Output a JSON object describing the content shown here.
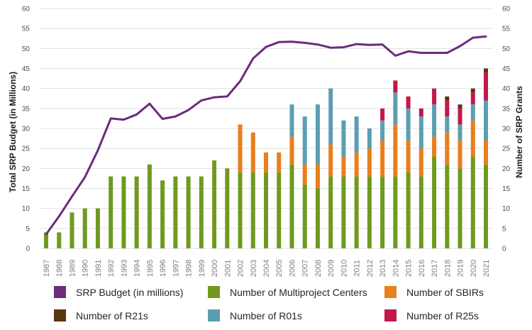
{
  "colors": {
    "budget": "#6b2c7d",
    "centers": "#6f9a1f",
    "sbir": "#e87f1c",
    "r21": "#5a3410",
    "r01": "#5b9eb2",
    "r25": "#c2184a",
    "grid": "#e0e0e0"
  },
  "chart_data": {
    "type": "bar",
    "stacked": true,
    "left_axis_title": "Total SRP Budget (in Millions)",
    "right_axis_title": "Number of SRP Grants",
    "ylim": [
      0,
      60
    ],
    "y_ticks": [
      "0",
      "5",
      "10",
      "15",
      "20",
      "25",
      "30",
      "35",
      "40",
      "45",
      "50",
      "55",
      "60"
    ],
    "categories": [
      "1987",
      "1988",
      "1989",
      "1990",
      "1991",
      "1992",
      "1993",
      "1994",
      "1995",
      "1996",
      "1997",
      "1998",
      "1999",
      "2000",
      "2001",
      "2002",
      "2003",
      "2004",
      "2005",
      "2006",
      "2007",
      "2008",
      "2009",
      "2010",
      "2011",
      "2012",
      "2013",
      "2014",
      "2015",
      "2016",
      "2017",
      "2018",
      "2019",
      "2020",
      "2021"
    ],
    "bar_series": [
      {
        "key": "centers",
        "name": "Number of Multiproject Centers",
        "values": [
          4,
          4,
          9,
          10,
          10,
          18,
          18,
          18,
          21,
          17,
          18,
          18,
          18,
          22,
          20,
          19,
          19,
          19,
          19,
          21,
          16,
          15,
          18,
          18,
          18,
          18,
          18,
          18,
          19,
          18,
          23,
          21,
          20,
          23,
          21
        ]
      },
      {
        "key": "sbir",
        "name": "Number of SBIRs",
        "values": [
          0,
          0,
          0,
          0,
          0,
          0,
          0,
          0,
          0,
          0,
          0,
          0,
          0,
          0,
          0,
          12,
          10,
          5,
          5,
          7,
          5,
          6,
          8,
          5,
          6,
          7,
          9,
          13,
          8,
          7,
          5,
          8,
          7,
          9,
          6
        ]
      },
      {
        "key": "r01",
        "name": "Number of R01s",
        "values": [
          0,
          0,
          0,
          0,
          0,
          0,
          0,
          0,
          0,
          0,
          0,
          0,
          0,
          0,
          0,
          0,
          0,
          0,
          0,
          8,
          12,
          15,
          14,
          9,
          9,
          5,
          5,
          8,
          8,
          8,
          8,
          4,
          4,
          4,
          10
        ]
      },
      {
        "key": "r25",
        "name": "Number of R25s",
        "values": [
          0,
          0,
          0,
          0,
          0,
          0,
          0,
          0,
          0,
          0,
          0,
          0,
          0,
          0,
          0,
          0,
          0,
          0,
          0,
          0,
          0,
          0,
          0,
          0,
          0,
          0,
          3,
          3,
          3,
          2,
          4,
          4,
          4,
          3,
          7
        ]
      },
      {
        "key": "r21",
        "name": "Number of R21s",
        "values": [
          0,
          0,
          0,
          0,
          0,
          0,
          0,
          0,
          0,
          0,
          0,
          0,
          0,
          0,
          0,
          0,
          0,
          0,
          0,
          0,
          0,
          0,
          0,
          0,
          0,
          0,
          0,
          0,
          0,
          0,
          0,
          1,
          1,
          1,
          1
        ]
      }
    ],
    "line_series": {
      "key": "budget",
      "name": "SRP Budget (in millions)",
      "values": [
        3.5,
        8,
        13,
        17.8,
        24.5,
        32.5,
        32.2,
        33.5,
        36.2,
        32.4,
        33,
        34.6,
        37,
        37.8,
        38,
        41.8,
        47.5,
        50.4,
        51.6,
        51.7,
        51.4,
        51,
        50.2,
        50.3,
        51.1,
        50.9,
        51,
        48.2,
        49.3,
        48.9,
        48.9,
        48.9,
        50.6,
        52.7,
        53
      ]
    }
  },
  "legend": [
    {
      "key": "budget",
      "label": "SRP Budget (in millions)"
    },
    {
      "key": "centers",
      "label": "Number of Multiproject Centers"
    },
    {
      "key": "sbir",
      "label": "Number of SBIRs"
    },
    {
      "key": "r21",
      "label": "Number of R21s"
    },
    {
      "key": "r01",
      "label": "Number of R01s"
    },
    {
      "key": "r25",
      "label": "Number of R25s"
    }
  ]
}
